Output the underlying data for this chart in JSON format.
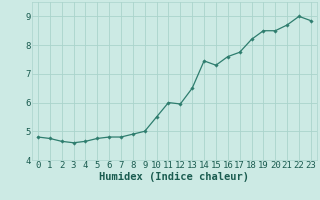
{
  "x": [
    0,
    1,
    2,
    3,
    4,
    5,
    6,
    7,
    8,
    9,
    10,
    11,
    12,
    13,
    14,
    15,
    16,
    17,
    18,
    19,
    20,
    21,
    22,
    23
  ],
  "y": [
    4.8,
    4.75,
    4.65,
    4.6,
    4.65,
    4.75,
    4.8,
    4.8,
    4.9,
    5.0,
    5.5,
    6.0,
    5.95,
    6.5,
    7.45,
    7.3,
    7.6,
    7.75,
    8.2,
    8.5,
    8.5,
    8.7,
    9.0,
    8.85
  ],
  "line_color": "#2e7d6e",
  "marker": "D",
  "marker_size": 1.8,
  "bg_color": "#cceae4",
  "grid_color": "#aad4cc",
  "xlabel": "Humidex (Indice chaleur)",
  "xlim": [
    -0.5,
    23.5
  ],
  "ylim": [
    4.0,
    9.5
  ],
  "yticks": [
    4,
    5,
    6,
    7,
    8,
    9
  ],
  "xticks": [
    0,
    1,
    2,
    3,
    4,
    5,
    6,
    7,
    8,
    9,
    10,
    11,
    12,
    13,
    14,
    15,
    16,
    17,
    18,
    19,
    20,
    21,
    22,
    23
  ],
  "font_color": "#1a5c50",
  "tick_font_size": 6.5,
  "xlabel_fontsize": 7.5,
  "linewidth": 0.9
}
